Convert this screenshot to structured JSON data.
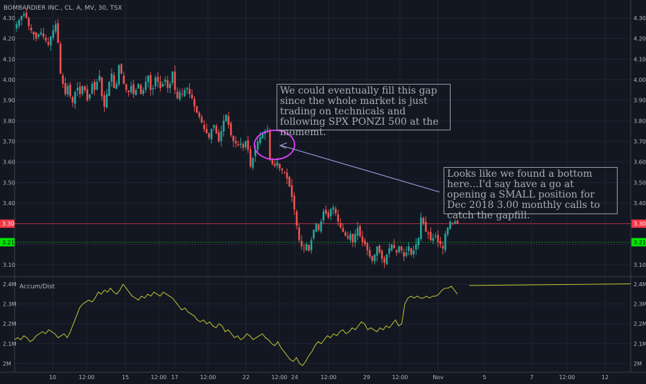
{
  "header": {
    "title": "BOMBARDIER INC., CL. A, MV, 30, TSX"
  },
  "indicator": {
    "label": "Accum/Dist"
  },
  "price_tags": [
    {
      "value": "3.30",
      "color": "#f23645",
      "text_color": "#ffffff"
    },
    {
      "value": "3.21",
      "color": "#00e600",
      "text_color": "#000000"
    }
  ],
  "annotations": [
    {
      "text": "We could eventually fill this gap since the whole market is just trading on technicals and following SPX PONZI 500 at the momemt."
    },
    {
      "text": "Looks like we found a bottom here...I'd say have a go at opening a SMALL position for Dec 2018 3.00 monthly calls to catch the gapfill."
    }
  ],
  "colors": {
    "up": "#26a69a",
    "down": "#ef5350",
    "ad_line": "#c8c832",
    "circle": "#e040fb",
    "arrow": "#9fa3e6",
    "grid": "#1f2430",
    "text": "#b2b5be"
  },
  "chart_data": [
    {
      "type": "candlestick",
      "title": "BOMBARDIER INC., CL. A, MV, 30, TSX",
      "x_tick_labels": [
        "10",
        "12:00",
        "15",
        "12:00",
        "17",
        "12:00",
        "22",
        "12:00",
        "24",
        "12:00",
        "29",
        "12:00",
        "Nov",
        "5",
        "7",
        "12:00",
        "12"
      ],
      "y_tick_labels": [
        "4.30",
        "4.20",
        "4.10",
        "4.00",
        "3.90",
        "3.80",
        "3.70",
        "3.60",
        "3.50",
        "3.40",
        "3.30",
        "3.20",
        "3.10"
      ],
      "ylim": [
        3.03,
        4.34
      ],
      "horizontal_lines": [
        {
          "price": 3.3,
          "color": "#f23645",
          "style": "solid"
        },
        {
          "price": 3.21,
          "color": "#00e600",
          "style": "dotted"
        }
      ],
      "closes": [
        4.27,
        4.29,
        4.31,
        4.32,
        4.3,
        4.26,
        4.24,
        4.22,
        4.2,
        4.22,
        4.23,
        4.21,
        4.19,
        4.17,
        4.21,
        4.24,
        4.27,
        4.18,
        4.03,
        3.98,
        3.93,
        3.97,
        3.92,
        3.89,
        3.94,
        3.96,
        3.93,
        3.97,
        3.95,
        3.9,
        3.93,
        3.98,
        3.95,
        3.99,
        4.02,
        3.92,
        3.87,
        3.93,
        3.99,
        4.03,
        3.96,
        3.98,
        4.07,
        4.03,
        3.98,
        3.95,
        3.94,
        3.97,
        3.93,
        3.95,
        3.98,
        3.93,
        3.95,
        3.99,
        4.02,
        3.95,
        3.96,
        4.01,
        3.99,
        3.96,
        3.98,
        4.0,
        3.96,
        3.98,
        4.04,
        3.95,
        3.91,
        3.94,
        3.93,
        3.95,
        3.96,
        3.93,
        3.91,
        3.87,
        3.84,
        3.82,
        3.79,
        3.76,
        3.74,
        3.72,
        3.76,
        3.78,
        3.74,
        3.7,
        3.75,
        3.8,
        3.83,
        3.78,
        3.73,
        3.7,
        3.69,
        3.68,
        3.69,
        3.67,
        3.7,
        3.66,
        3.58,
        3.62,
        3.66,
        3.7,
        3.72,
        3.74,
        3.75,
        3.76,
        3.61,
        3.59,
        3.58,
        3.6,
        3.57,
        3.56,
        3.55,
        3.52,
        3.48,
        3.43,
        3.37,
        3.29,
        3.22,
        3.19,
        3.18,
        3.2,
        3.17,
        3.22,
        3.27,
        3.3,
        3.27,
        3.31,
        3.36,
        3.35,
        3.33,
        3.37,
        3.38,
        3.35,
        3.31,
        3.28,
        3.26,
        3.24,
        3.23,
        3.25,
        3.21,
        3.25,
        3.28,
        3.24,
        3.21,
        3.2,
        3.17,
        3.14,
        3.12,
        3.15,
        3.19,
        3.16,
        3.13,
        3.11,
        3.15,
        3.18,
        3.2,
        3.18,
        3.16,
        3.19,
        3.17,
        3.14,
        3.16,
        3.19,
        3.15,
        3.17,
        3.2,
        3.23,
        3.33,
        3.3,
        3.26,
        3.25,
        3.22,
        3.23,
        3.24,
        3.21,
        3.2,
        3.18,
        3.25,
        3.28,
        3.31,
        3.3,
        3.31,
        3.3
      ],
      "indicator_series": {
        "name": "Accum/Dist",
        "y_tick_labels": [
          "2.4M",
          "2.3M",
          "2.2M",
          "2.1M",
          "2M"
        ],
        "ylim": [
          1.96,
          2.42
        ],
        "values_millions": [
          2.12,
          2.13,
          2.12,
          2.14,
          2.13,
          2.11,
          2.12,
          2.14,
          2.15,
          2.16,
          2.15,
          2.17,
          2.16,
          2.15,
          2.13,
          2.14,
          2.15,
          2.13,
          2.16,
          2.2,
          2.24,
          2.28,
          2.3,
          2.31,
          2.32,
          2.31,
          2.33,
          2.36,
          2.35,
          2.37,
          2.36,
          2.38,
          2.36,
          2.35,
          2.37,
          2.4,
          2.38,
          2.36,
          2.34,
          2.33,
          2.32,
          2.34,
          2.33,
          2.35,
          2.34,
          2.36,
          2.35,
          2.34,
          2.36,
          2.35,
          2.34,
          2.33,
          2.31,
          2.29,
          2.27,
          2.28,
          2.26,
          2.25,
          2.24,
          2.22,
          2.21,
          2.22,
          2.2,
          2.21,
          2.19,
          2.18,
          2.2,
          2.19,
          2.16,
          2.17,
          2.15,
          2.13,
          2.14,
          2.12,
          2.13,
          2.15,
          2.14,
          2.12,
          2.13,
          2.14,
          2.15,
          2.13,
          2.12,
          2.1,
          2.09,
          2.11,
          2.08,
          2.06,
          2.04,
          2.02,
          2.01,
          2.03,
          2.0,
          1.99,
          2.01,
          2.04,
          2.06,
          2.09,
          2.11,
          2.1,
          2.12,
          2.14,
          2.13,
          2.15,
          2.14,
          2.16,
          2.17,
          2.15,
          2.16,
          2.18,
          2.17,
          2.19,
          2.21,
          2.2,
          2.17,
          2.18,
          2.17,
          2.16,
          2.18,
          2.17,
          2.19,
          2.18,
          2.2,
          2.22,
          2.19,
          2.2,
          2.3,
          2.33,
          2.34,
          2.33,
          2.34,
          2.33,
          2.33,
          2.34,
          2.33,
          2.34,
          2.34,
          2.35,
          2.37,
          2.38,
          2.38,
          2.39,
          2.37,
          2.35
        ],
        "trend_line": [
          2.39,
          2.4
        ]
      }
    }
  ]
}
